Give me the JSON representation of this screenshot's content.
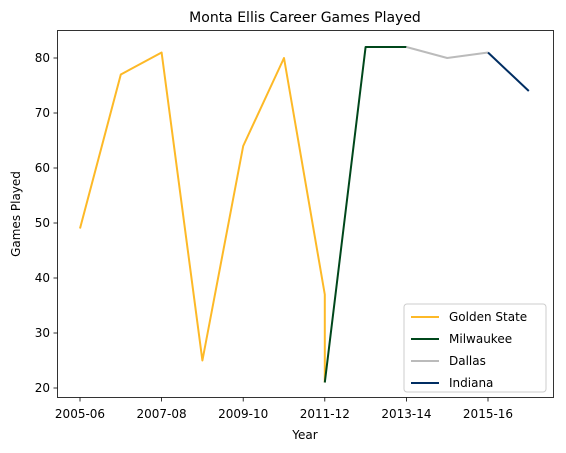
{
  "chart_data": {
    "type": "line",
    "title": "Monta Ellis Career Games Played",
    "xlabel": "Year",
    "ylabel": "Games Played",
    "ylim": [
      18,
      85
    ],
    "yticks": [
      20,
      30,
      40,
      50,
      60,
      70,
      80
    ],
    "xticks": [
      "2005-06",
      "2007-08",
      "2009-10",
      "2011-12",
      "2013-14",
      "2015-16"
    ],
    "grid": false,
    "legend_position": "lower right",
    "series": [
      {
        "name": "Golden State",
        "color": "#FDB927",
        "points": [
          {
            "x": "2005-06",
            "y": 49
          },
          {
            "x": "2006-07",
            "y": 77
          },
          {
            "x": "2007-08",
            "y": 81
          },
          {
            "x": "2008-09",
            "y": 25
          },
          {
            "x": "2009-10",
            "y": 64
          },
          {
            "x": "2010-11",
            "y": 80
          },
          {
            "x": "2011-12",
            "y": 37
          },
          {
            "x": "2011-12",
            "y": 21
          }
        ]
      },
      {
        "name": "Milwaukee",
        "color": "#00471B",
        "points": [
          {
            "x": "2011-12",
            "y": 21
          },
          {
            "x": "2012-13",
            "y": 82
          },
          {
            "x": "2013-14",
            "y": 82
          }
        ]
      },
      {
        "name": "Dallas",
        "color": "#BBBBBB",
        "points": [
          {
            "x": "2013-14",
            "y": 82
          },
          {
            "x": "2014-15",
            "y": 80
          },
          {
            "x": "2015-16",
            "y": 81
          }
        ]
      },
      {
        "name": "Indiana",
        "color": "#002D62",
        "points": [
          {
            "x": "2015-16",
            "y": 81
          },
          {
            "x": "2016-17",
            "y": 74
          }
        ]
      }
    ]
  }
}
